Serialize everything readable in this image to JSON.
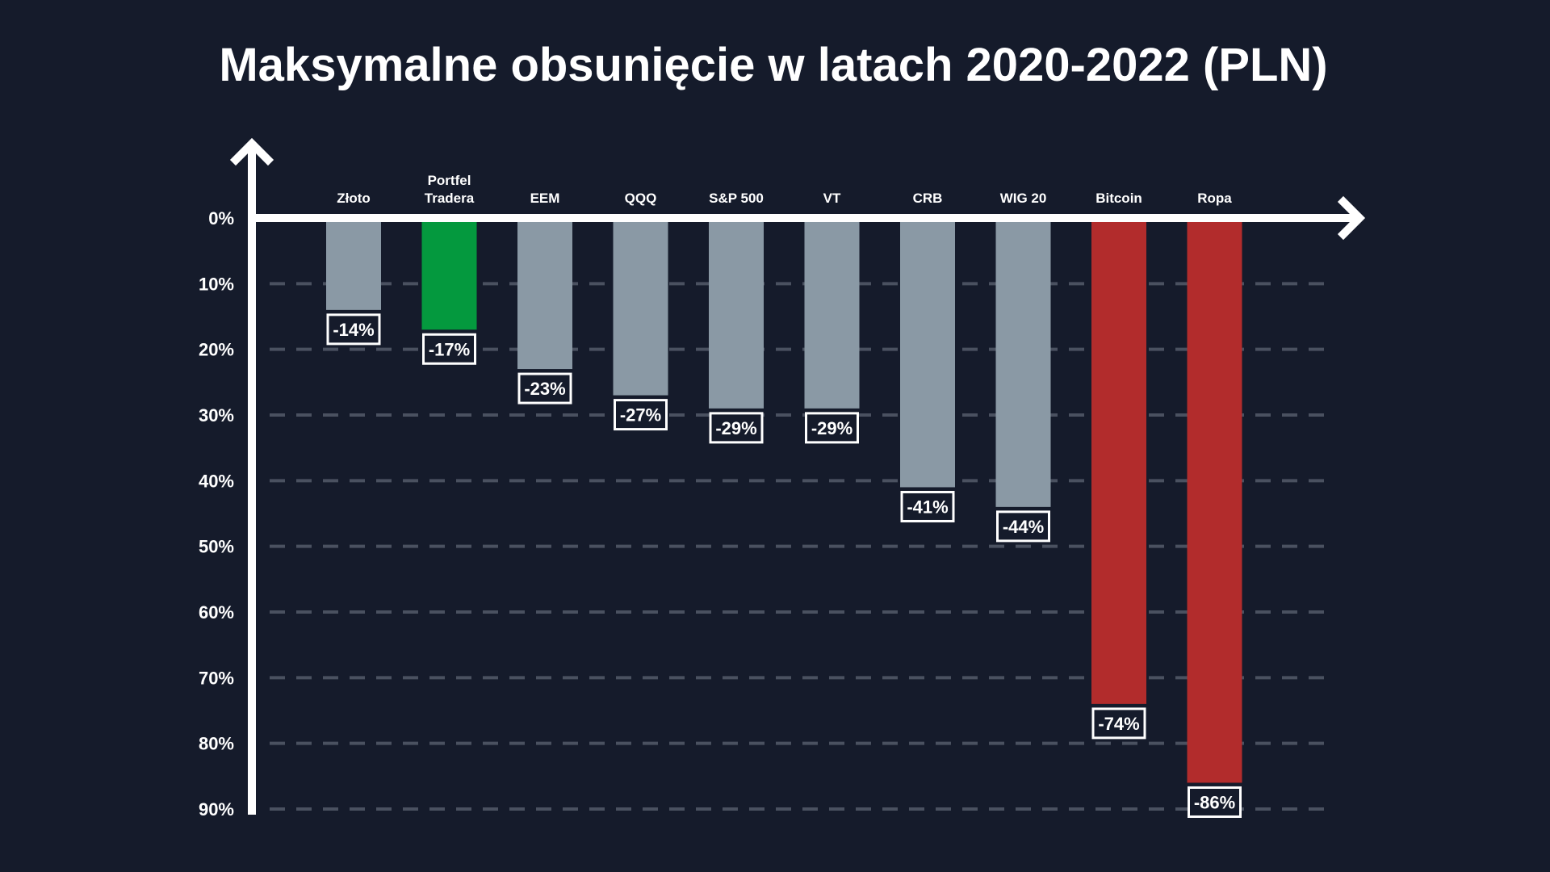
{
  "chart_data": {
    "type": "bar",
    "title": "Maksymalne obsunięcie w latach 2020-2022 (PLN)",
    "categories": [
      "Złoto",
      "Portfel Tradera",
      "EEM",
      "QQQ",
      "S&P 500",
      "VT",
      "CRB",
      "WIG 20",
      "Bitcoin",
      "Ropa"
    ],
    "values": [
      -14,
      -17,
      -23,
      -27,
      -29,
      -29,
      -41,
      -44,
      -74,
      -86
    ],
    "value_labels": [
      "-14%",
      "-17%",
      "-23%",
      "-27%",
      "-29%",
      "-29%",
      "-41%",
      "-44%",
      "-74%",
      "-86%"
    ],
    "colors": [
      "#8a99a5",
      "#04993e",
      "#8a99a5",
      "#8a99a5",
      "#8a99a5",
      "#8a99a5",
      "#8a99a5",
      "#8a99a5",
      "#b22c2c",
      "#b22c2c"
    ],
    "y_ticks": [
      "0%",
      "10%",
      "20%",
      "30%",
      "40%",
      "50%",
      "60%",
      "70%",
      "80%",
      "90%"
    ],
    "y_tick_values": [
      0,
      10,
      20,
      30,
      40,
      50,
      60,
      70,
      80,
      90
    ],
    "ylim": [
      0,
      90
    ],
    "y_inverted": true,
    "grid": "dashed",
    "legend": "none",
    "background": "#151b2b",
    "axis_color": "#ffffff",
    "grid_color": "#4a5160"
  }
}
